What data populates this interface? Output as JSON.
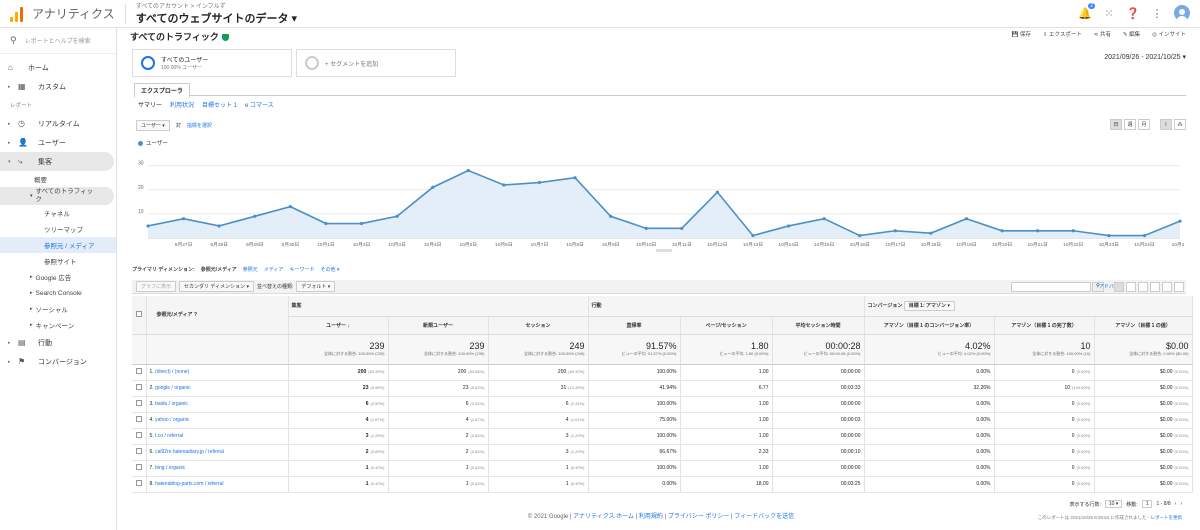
{
  "app": {
    "title": "アナリティクス",
    "account_crumb": "すべてのアカウント > インフルず",
    "property": "すべてのウェブサイトのデータ",
    "notification_count": "2"
  },
  "sidebar": {
    "search_placeholder": "レポートとヘルプを検索",
    "home": "ホーム",
    "custom": "カスタム",
    "reports_label": "レポート",
    "realtime": "リアルタイム",
    "audience": "ユーザー",
    "acquisition": "集客",
    "sub": {
      "overview": "概要",
      "all_traffic": "すべてのトラフィック",
      "channels": "チャネル",
      "treemap": "ツリーマップ",
      "source_medium": "参照元 / メディア",
      "referrals": "参照サイト",
      "google_ads": "Google 広告",
      "search_console": "Search Console",
      "social": "ソーシャル",
      "campaigns": "キャンペーン"
    },
    "behavior": "行動",
    "conversions": "コンバージョン"
  },
  "page": {
    "title": "すべてのトラフィック",
    "actions": [
      "保存",
      "エクスポート",
      "共有",
      "編集",
      "インサイト"
    ],
    "date_range": "2021/09/26 - 2021/10/25"
  },
  "segments": {
    "s1_title": "すべてのユーザー",
    "s1_sub": "100.00% ユーザー",
    "add": "+ セグメントを追加"
  },
  "explorer": {
    "tab": "エクスプローラ",
    "subtabs": [
      "サマリー",
      "利用状況",
      "目標セット 1",
      "e コマース"
    ]
  },
  "chart_ctl": {
    "metric": "ユーザー",
    "vs": "対",
    "select": "指標を選択",
    "views": [
      "日",
      "週",
      "月"
    ]
  },
  "chart_data": {
    "type": "area",
    "series": [
      {
        "name": "ユーザー",
        "values": [
          5,
          8,
          5,
          9,
          13,
          6,
          6,
          9,
          21,
          28,
          22,
          23,
          25,
          9,
          4,
          4,
          19,
          1,
          5,
          8,
          1,
          3,
          2,
          8,
          3,
          3,
          3,
          1,
          1,
          7
        ]
      }
    ],
    "x_tick_labels": [
      "9月27日",
      "9月28日",
      "9月29日",
      "9月30日",
      "10月1日",
      "10月2日",
      "10月3日",
      "10月4日",
      "10月5日",
      "10月6日",
      "10月7日",
      "10月8日",
      "10月9日",
      "10月10日",
      "10月11日",
      "10月12日",
      "10月13日",
      "10月14日",
      "10月15日",
      "10月16日",
      "10月17日",
      "10月18日",
      "10月19日",
      "10月20日",
      "10月21日",
      "10月22日",
      "10月23日",
      "10月24日",
      "10月2..."
    ],
    "y_ticks": [
      "10",
      "20",
      "30"
    ],
    "ylim": [
      0,
      34
    ],
    "color": "#4a90c8",
    "grid": true,
    "legend": "top-left"
  },
  "primary_dim": {
    "label": "プライマリ ディメンション:",
    "current": "参照元/メディア",
    "options": [
      "参照元",
      "メディア",
      "キーワード",
      "その他"
    ]
  },
  "table_toolbar": {
    "plot": "グラフに表示",
    "secondary": "セカンダリ ディメンション",
    "sort_label": "並べ替えの種類:",
    "sort": "デフォルト",
    "advanced": "アドバンス"
  },
  "table": {
    "groups": {
      "acq": "集客",
      "beh": "行動",
      "conv": "コンバージョン",
      "goal": "目標 1: アマゾン"
    },
    "dim_header": "参照元/メディア",
    "headers": [
      "ユーザー",
      "新規ユーザー",
      "セッション",
      "直帰率",
      "ページ/セッション",
      "平均セッション時間",
      "アマゾン（目標 1 のコンバージョン率）",
      "アマゾン（目標 1 の完了数）",
      "アマゾン（目標 1 の値）"
    ],
    "totals": [
      {
        "v": "239",
        "s": "全体に対する割合: 100.00% (239)"
      },
      {
        "v": "239",
        "s": "全体に対する割合: 100.00% (239)"
      },
      {
        "v": "249",
        "s": "全体に対する割合: 100.00% (249)"
      },
      {
        "v": "91.57%",
        "s": "ビューの平均: 91.57% (0.00%)"
      },
      {
        "v": "1.80",
        "s": "ビューの平均: 1.80 (0.00%)"
      },
      {
        "v": "00:00:28",
        "s": "ビューの平均: 00:00:28 (0.00%)"
      },
      {
        "v": "4.02%",
        "s": "ビューの平均: 4.02% (0.00%)"
      },
      {
        "v": "10",
        "s": "全体に対する割合: 100.00% (10)"
      },
      {
        "v": "$0.00",
        "s": "全体に対する割合: 0.00% ($0.00)"
      }
    ],
    "rows": [
      {
        "n": "1.",
        "src": "(direct) / (none)",
        "u": "200",
        "up": "(83.33%)",
        "nu": "200",
        "nup": "(83.68%)",
        "s": "200",
        "sp": "(80.32%)",
        "br": "100.00%",
        "pps": "1.00",
        "dur": "00:00:00",
        "cr": "0.00%",
        "gc": "0",
        "gcp": "(0.00%)",
        "gv": "$0.00",
        "gvp": "(0.00%)"
      },
      {
        "n": "2.",
        "src": "google / organic",
        "u": "23",
        "up": "(9.58%)",
        "nu": "23",
        "nup": "(9.62%)",
        "s": "31",
        "sp": "(12.45%)",
        "br": "41.94%",
        "pps": "6.77",
        "dur": "00:03:33",
        "cr": "32.26%",
        "gc": "10",
        "gcp": "(100.00%)",
        "gv": "$0.00",
        "gvp": "(0.00%)"
      },
      {
        "n": "3.",
        "src": "baidu / organic",
        "u": "6",
        "up": "(2.50%)",
        "nu": "6",
        "nup": "(2.51%)",
        "s": "6",
        "sp": "(2.41%)",
        "br": "100.00%",
        "pps": "1.00",
        "dur": "00:00:00",
        "cr": "0.00%",
        "gc": "0",
        "gcp": "(0.00%)",
        "gv": "$0.00",
        "gvp": "(0.00%)"
      },
      {
        "n": "4.",
        "src": "yahoo / organic",
        "u": "4",
        "up": "(1.67%)",
        "nu": "4",
        "nup": "(1.67%)",
        "s": "4",
        "sp": "(1.61%)",
        "br": "75.00%",
        "pps": "1.00",
        "dur": "00:00:03",
        "cr": "0.00%",
        "gc": "0",
        "gcp": "(0.00%)",
        "gv": "$0.00",
        "gvp": "(0.00%)"
      },
      {
        "n": "5.",
        "src": "t.co / referral",
        "u": "3",
        "up": "(1.25%)",
        "nu": "2",
        "nup": "(0.84%)",
        "s": "3",
        "sp": "(1.20%)",
        "br": "100.00%",
        "pps": "1.00",
        "dur": "00:00:00",
        "cr": "0.00%",
        "gc": "0",
        "gcp": "(0.00%)",
        "gv": "$0.00",
        "gvp": "(0.00%)"
      },
      {
        "n": "6.",
        "src": "cal92re.hatenadiary.jp / referral",
        "u": "2",
        "up": "(0.83%)",
        "nu": "2",
        "nup": "(0.84%)",
        "s": "3",
        "sp": "(1.20%)",
        "br": "66.67%",
        "pps": "2.33",
        "dur": "00:00:10",
        "cr": "0.00%",
        "gc": "0",
        "gcp": "(0.00%)",
        "gv": "$0.00",
        "gvp": "(0.00%)"
      },
      {
        "n": "7.",
        "src": "bing / organic",
        "u": "1",
        "up": "(0.42%)",
        "nu": "1",
        "nup": "(0.42%)",
        "s": "1",
        "sp": "(0.40%)",
        "br": "100.00%",
        "pps": "1.00",
        "dur": "00:00:00",
        "cr": "0.00%",
        "gc": "0",
        "gcp": "(0.00%)",
        "gv": "$0.00",
        "gvp": "(0.00%)"
      },
      {
        "n": "8.",
        "src": "hatenablog-parts.com / referral",
        "u": "1",
        "up": "(0.42%)",
        "nu": "1",
        "nup": "(0.42%)",
        "s": "1",
        "sp": "(0.40%)",
        "br": "0.00%",
        "pps": "18.00",
        "dur": "00:03:25",
        "cr": "0.00%",
        "gc": "0",
        "gcp": "(0.00%)",
        "gv": "$0.00",
        "gvp": "(0.00%)"
      }
    ]
  },
  "pager": {
    "rows_label": "表示する行数:",
    "rows": "10",
    "goto": "移動:",
    "page": "1",
    "range": "1 - 8/8"
  },
  "generated": {
    "text": "このレポートは 2021/10/26 8:26:54 に作成されました -",
    "link": "レポートを更新"
  },
  "footer": {
    "copyright": "© 2021 Google |",
    "links": [
      "アナリティクス ホーム",
      "利用規約",
      "プライバシー ポリシー",
      "フィードバックを送信"
    ]
  }
}
